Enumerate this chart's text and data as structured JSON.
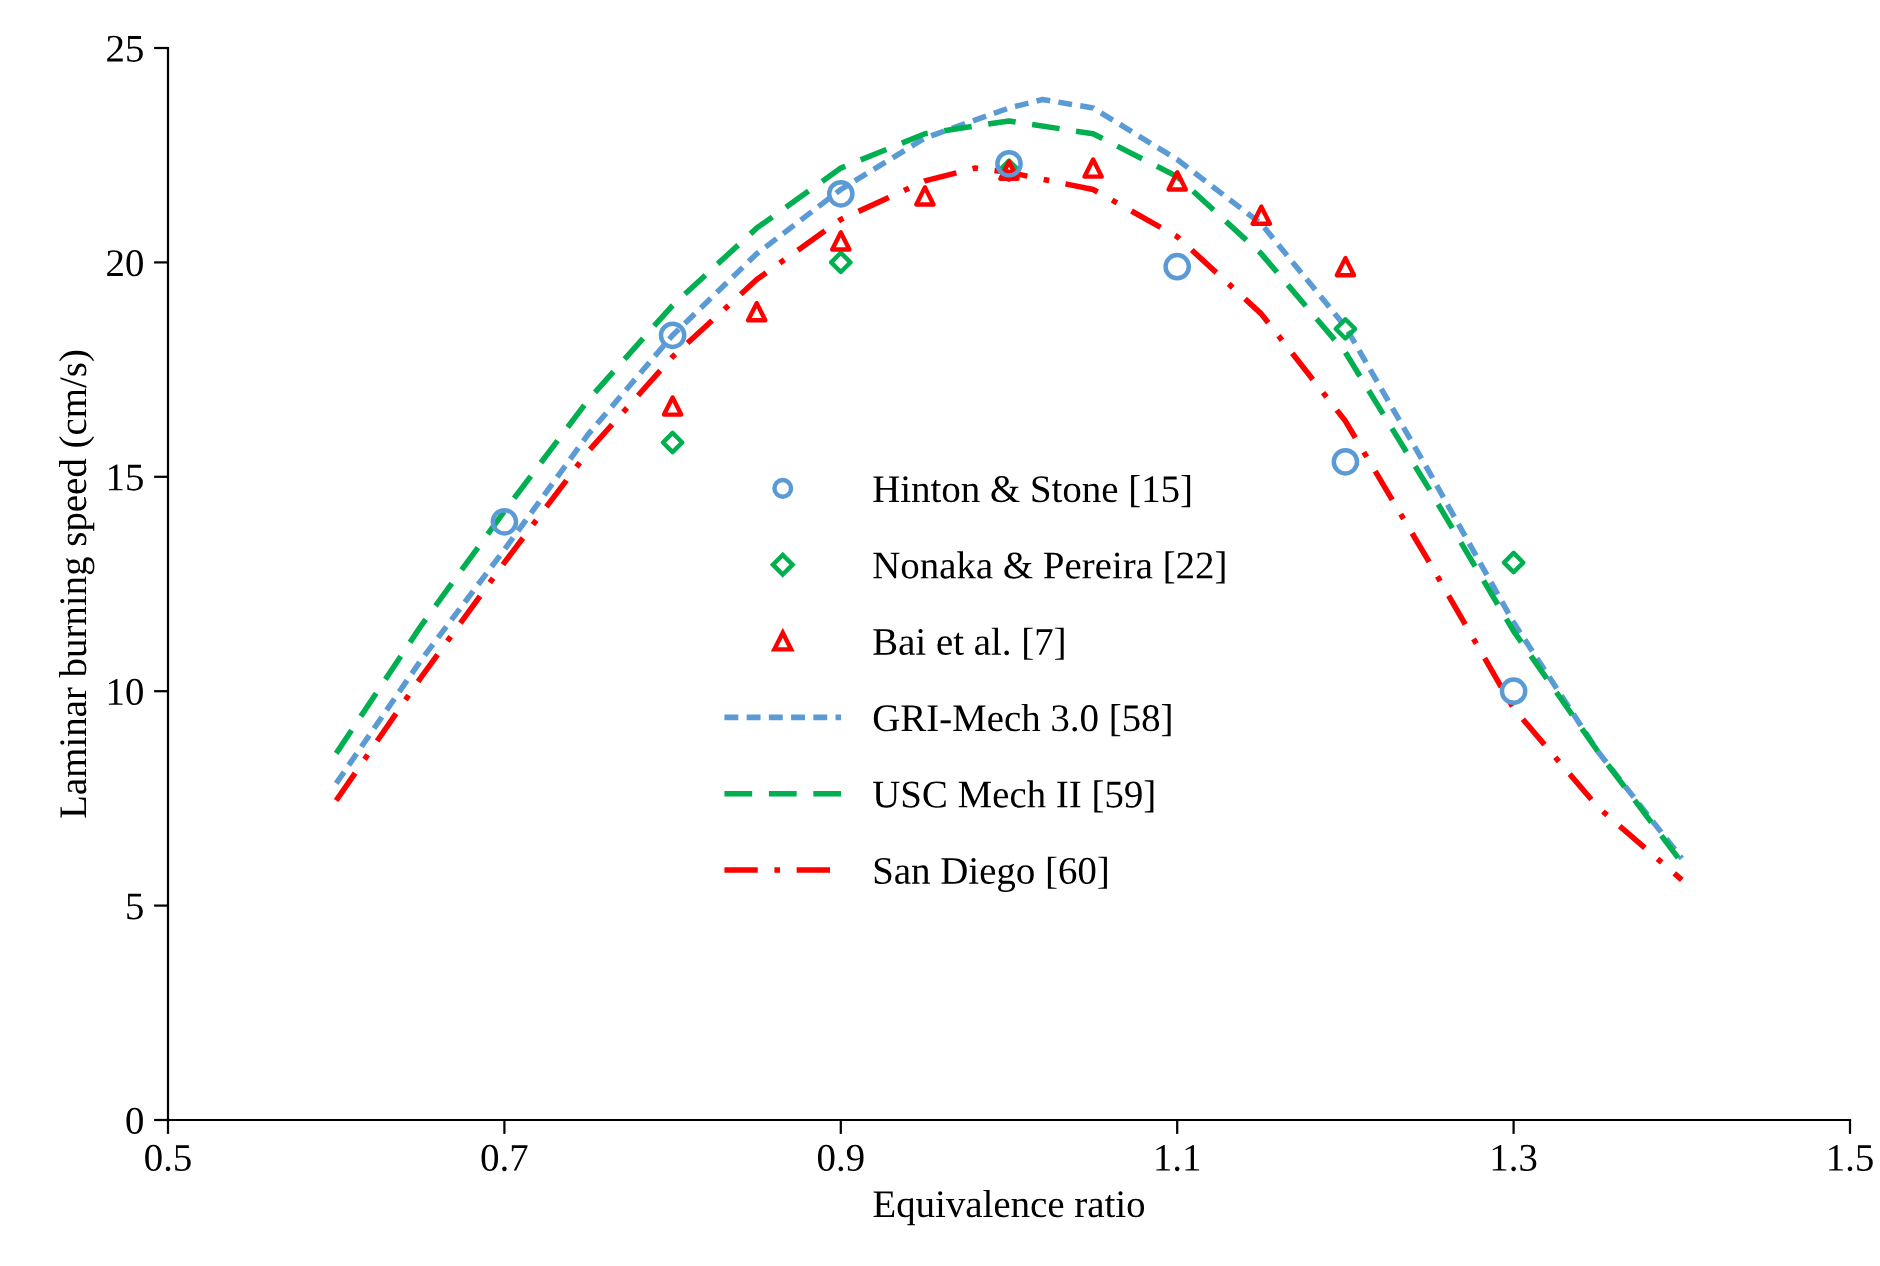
{
  "chart_data": {
    "type": "scatter",
    "xlabel": "Equivalence ratio",
    "ylabel": "Laminar burning speed (cm/s)",
    "xlim": [
      0.5,
      1.5
    ],
    "xticks": [
      0.5,
      0.7,
      0.9,
      1.1,
      1.3,
      1.5
    ],
    "ylim": [
      0,
      25
    ],
    "yticks": [
      0,
      5,
      10,
      15,
      20,
      25
    ],
    "grid": false,
    "legend": "center",
    "series": [
      {
        "name": "Hinton & Stone [15]",
        "marker": "circle",
        "color": "#5b9bd5",
        "x": [
          0.7,
          0.8,
          0.9,
          1.0,
          1.1,
          1.2,
          1.3
        ],
        "values": [
          13.95,
          18.3,
          21.6,
          22.3,
          19.9,
          15.35,
          10.0
        ]
      },
      {
        "name": "Nonaka & Pereira [22]",
        "marker": "diamond",
        "color": "#00b050",
        "x": [
          0.8,
          0.9,
          1.0,
          1.2,
          1.3
        ],
        "values": [
          15.8,
          20.0,
          22.15,
          18.45,
          13.0
        ]
      },
      {
        "name": "Bai et al. [7]",
        "marker": "triangle",
        "color": "#ff0000",
        "x": [
          0.8,
          0.85,
          0.9,
          0.95,
          1.0,
          1.05,
          1.1,
          1.15,
          1.2
        ],
        "values": [
          16.65,
          18.85,
          20.5,
          21.55,
          22.15,
          22.2,
          21.9,
          21.1,
          19.9
        ]
      },
      {
        "name": "GRI-Mech 3.0 [58]",
        "type": "line",
        "marker": "none",
        "line_style": "dashed",
        "color": "#5b9bd5",
        "x": [
          0.6,
          0.65,
          0.7,
          0.75,
          0.8,
          0.85,
          0.9,
          0.95,
          1.0,
          1.02,
          1.05,
          1.1,
          1.15,
          1.2,
          1.25,
          1.3,
          1.35,
          1.4
        ],
        "values": [
          7.85,
          10.7,
          13.3,
          16.0,
          18.3,
          20.2,
          21.7,
          22.9,
          23.6,
          23.8,
          23.6,
          22.4,
          20.9,
          18.5,
          15.1,
          11.6,
          8.6,
          6.1
        ]
      },
      {
        "name": "USC Mech II [59]",
        "type": "line",
        "marker": "none",
        "line_style": "dashed",
        "color": "#00b050",
        "x": [
          0.6,
          0.65,
          0.7,
          0.75,
          0.8,
          0.85,
          0.9,
          0.95,
          1.0,
          1.05,
          1.1,
          1.15,
          1.2,
          1.25,
          1.3,
          1.35,
          1.4
        ],
        "values": [
          8.55,
          11.5,
          14.2,
          16.8,
          19.0,
          20.8,
          22.2,
          23.0,
          23.3,
          23.0,
          22.0,
          20.2,
          17.9,
          14.7,
          11.4,
          8.6,
          6.0
        ]
      },
      {
        "name": "San Diego [60]",
        "type": "line",
        "marker": "none",
        "line_style": "dashdot",
        "color": "#ff0000",
        "x": [
          0.6,
          0.65,
          0.7,
          0.75,
          0.8,
          0.85,
          0.9,
          0.95,
          0.98,
          1.0,
          1.05,
          1.1,
          1.15,
          1.2,
          1.25,
          1.3,
          1.35,
          1.4
        ],
        "values": [
          7.45,
          10.3,
          13.0,
          15.6,
          17.8,
          19.6,
          21.0,
          21.9,
          22.2,
          22.1,
          21.7,
          20.6,
          18.8,
          16.3,
          13.0,
          9.6,
          7.3,
          5.6
        ]
      }
    ]
  }
}
